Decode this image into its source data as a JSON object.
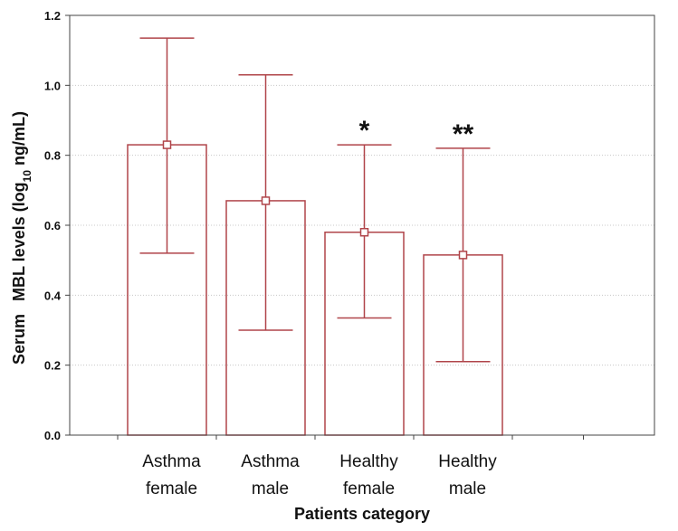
{
  "chart_data": {
    "type": "bar",
    "categories": [
      [
        "Asthma",
        "female"
      ],
      [
        "Asthma",
        "male"
      ],
      [
        "Healthy",
        "female"
      ],
      [
        "Healthy",
        "male"
      ]
    ],
    "values": [
      0.83,
      0.67,
      0.58,
      0.515
    ],
    "error_low": [
      0.52,
      0.3,
      0.335,
      0.21
    ],
    "error_high": [
      1.135,
      1.03,
      0.83,
      0.82
    ],
    "significance": [
      "",
      "",
      "*",
      "**"
    ],
    "xlabel": "Patients category",
    "ylabel": {
      "part1": "Serum",
      "part2": "MBL levels (log",
      "subscript": "10",
      "part3": " ng/mL)"
    },
    "ylim": [
      0,
      1.2
    ],
    "yticks": [
      "0.0",
      "0.2",
      "0.4",
      "0.6",
      "0.8",
      "1.0",
      "1.2"
    ],
    "grid": true,
    "colors": {
      "bar_stroke": "#b0454a",
      "grid": "#c8c8c8",
      "axis": "#444444"
    }
  }
}
